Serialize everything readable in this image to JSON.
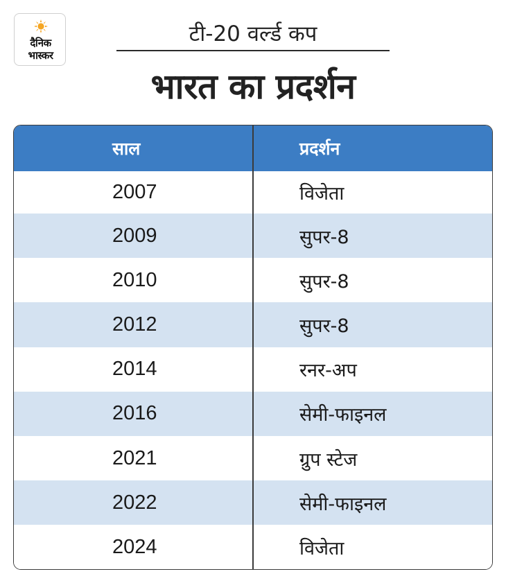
{
  "logo": {
    "line1": "दैनिक",
    "line2": "भास्कर",
    "icon": "sun-icon",
    "color": "#f5a623"
  },
  "header": {
    "subtitle": "टी-20 वर्ल्ड कप",
    "title": "भारत का प्रदर्शन"
  },
  "table": {
    "columns": [
      "साल",
      "प्रदर्शन"
    ],
    "header_color": "#3c7dc4",
    "shade_color": "#d4e2f1",
    "rows": [
      {
        "year": "2007",
        "result": "विजेता"
      },
      {
        "year": "2009",
        "result": "सुपर-8"
      },
      {
        "year": "2010",
        "result": "सुपर-8"
      },
      {
        "year": "2012",
        "result": "सुपर-8"
      },
      {
        "year": "2014",
        "result": "रनर-अप"
      },
      {
        "year": "2016",
        "result": "सेमी-फाइनल"
      },
      {
        "year": "2021",
        "result": "ग्रुप स्टेज"
      },
      {
        "year": "2022",
        "result": "सेमी-फाइनल"
      },
      {
        "year": "2024",
        "result": "विजेता"
      }
    ]
  }
}
